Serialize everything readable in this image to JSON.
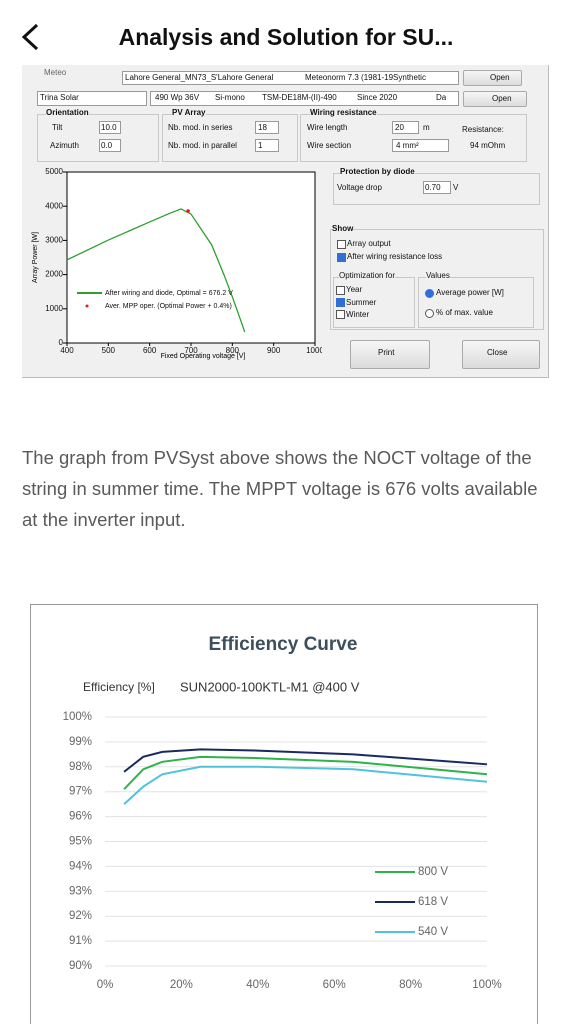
{
  "header": {
    "title": "Analysis and Solution for SU..."
  },
  "pvsyst": {
    "meteo_label": "Meteo",
    "meteo_site": "Lahore General_MN73_S'Lahore General",
    "meteo_source": "Meteonorm 7.3 (1981-19Synthetic",
    "open_1": "Open",
    "module_maker": "Trina Solar",
    "module_power": "490 Wp 36V",
    "module_tech": "Si-mono",
    "module_model": "TSM-DE18M-(II)-490",
    "module_since": "Since 2020",
    "module_db": "Da",
    "open_2": "Open",
    "orientation": {
      "title": "Orientation",
      "tilt_label": "Tilt",
      "tilt": "10.0",
      "azimuth_label": "Azimuth",
      "azimuth": "0.0"
    },
    "pv_array": {
      "title": "PV Array",
      "series_label": "Nb. mod. in series",
      "series": "18",
      "parallel_label": "Nb. mod. in parallel",
      "parallel": "1"
    },
    "wiring": {
      "title": "Wiring resistance",
      "length_label": "Wire length",
      "length": "20",
      "length_unit": "m",
      "resistance_label": "Resistance:",
      "section_label": "Wire section",
      "section": "4 mm²",
      "resistance": "94 mOhm"
    },
    "protection": {
      "title": "Protection by diode",
      "drop_label": "Voltage drop",
      "drop": "0.70",
      "drop_unit": "V"
    },
    "show": {
      "title": "Show",
      "array_output": "Array output",
      "after_wiring": "After wiring resistance loss"
    },
    "optimization": {
      "title": "Optimization for",
      "year": "Year",
      "summer": "Summer",
      "winter": "Winter"
    },
    "values_group": {
      "title": "Values",
      "average": "Average power [W]",
      "percent": "% of max. value"
    },
    "print": "Print",
    "close": "Close"
  },
  "paragraph": "The graph from PVSyst above shows the NOCT voltage of the string in summer time. The MPPT voltage is 676 volts available at the inverter input.",
  "chart_data": [
    {
      "type": "line",
      "x_label": "Fixed Operating voltage [V]",
      "y_label": "Array Power [W]",
      "xlim": [
        400,
        1000
      ],
      "xticks": [
        400,
        500,
        600,
        700,
        800,
        900,
        1000
      ],
      "ylim": [
        0,
        5000
      ],
      "yticks": [
        0,
        1000,
        2000,
        3000,
        4000,
        5000
      ],
      "grid": false,
      "legend": "lower left",
      "series": [
        {
          "name": "After wiring and diode, Optimal = 676.2 V",
          "color": "#2ca02c",
          "x": [
            400,
            500,
            600,
            650,
            676,
            700,
            750,
            780,
            800,
            820,
            830
          ],
          "values": [
            2430,
            3010,
            3540,
            3800,
            3920,
            3770,
            2870,
            1990,
            1350,
            670,
            320
          ]
        },
        {
          "name": "Aver. MPP oper. (Optimal Power + 0.4%)",
          "type": "scatter",
          "color": "#e02020",
          "x": [
            693
          ],
          "values": [
            3860
          ]
        }
      ]
    },
    {
      "type": "line",
      "title": "Efficiency Curve",
      "y_label": "Efficiency [%]",
      "subtitle": "SUN2000-100KTL-M1 @400 V",
      "xlim": [
        0,
        100
      ],
      "xticks": [
        {
          "value": 0,
          "label": "0%"
        },
        {
          "value": 20,
          "label": "20%"
        },
        {
          "value": 40,
          "label": "40%"
        },
        {
          "value": 60,
          "label": "60%"
        },
        {
          "value": 80,
          "label": "80%"
        },
        {
          "value": 100,
          "label": "100%"
        }
      ],
      "ylim": [
        90,
        100
      ],
      "yticks": [
        {
          "value": 90,
          "label": "90%"
        },
        {
          "value": 91,
          "label": "91%"
        },
        {
          "value": 92,
          "label": "92%"
        },
        {
          "value": 93,
          "label": "93%"
        },
        {
          "value": 94,
          "label": "94%"
        },
        {
          "value": 95,
          "label": "95%"
        },
        {
          "value": 96,
          "label": "96%"
        },
        {
          "value": 97,
          "label": "97%"
        },
        {
          "value": 98,
          "label": "98%"
        },
        {
          "value": 99,
          "label": "99%"
        },
        {
          "value": 100,
          "label": "100%"
        }
      ],
      "grid": true,
      "legend": "lower right",
      "series": [
        {
          "name": "800 V",
          "color": "#2db34a",
          "x": [
            5,
            10,
            15,
            25,
            40,
            65,
            100
          ],
          "values": [
            97.1,
            97.9,
            98.2,
            98.4,
            98.35,
            98.2,
            97.7
          ]
        },
        {
          "name": "618 V",
          "color": "#1b2a5e",
          "x": [
            5,
            10,
            15,
            25,
            40,
            65,
            100
          ],
          "values": [
            97.8,
            98.4,
            98.6,
            98.7,
            98.65,
            98.5,
            98.1
          ]
        },
        {
          "name": "540 V",
          "color": "#4fc3dc",
          "x": [
            5,
            10,
            15,
            25,
            40,
            65,
            100
          ],
          "values": [
            96.5,
            97.2,
            97.7,
            98.0,
            98.0,
            97.9,
            97.4
          ]
        }
      ]
    }
  ]
}
